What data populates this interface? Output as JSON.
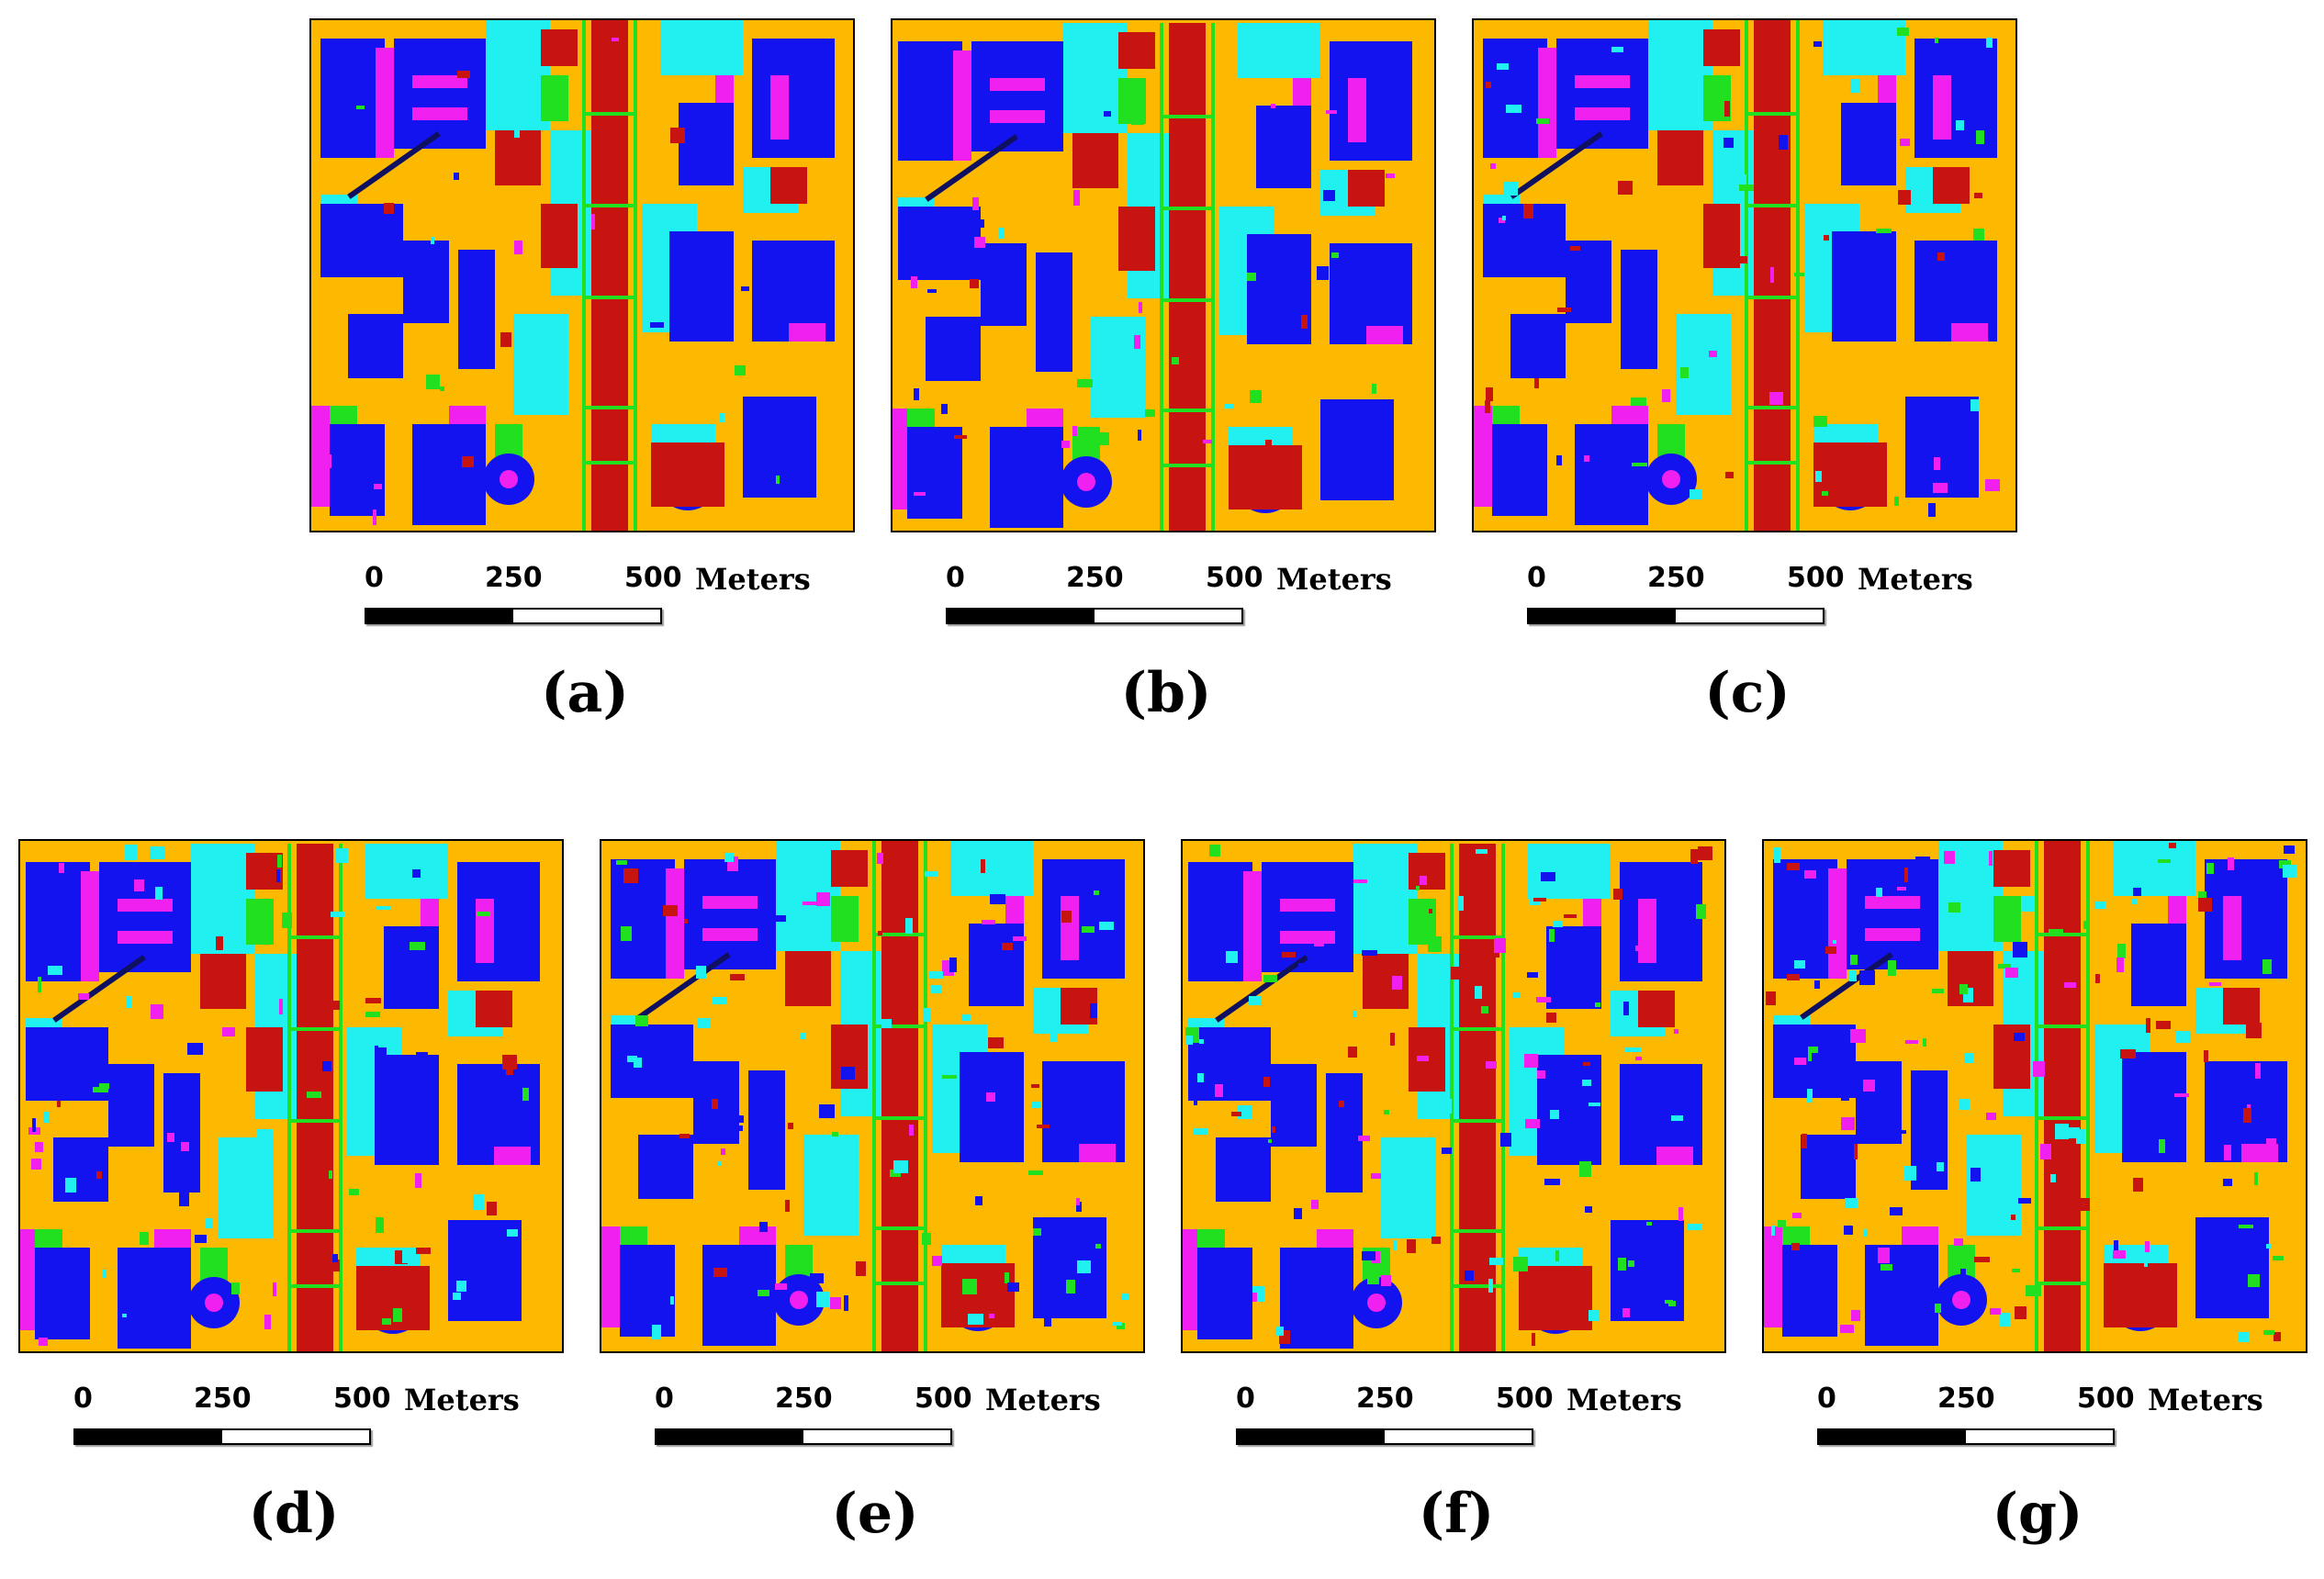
{
  "figure": {
    "legend_colors": {
      "background": "#fdb900",
      "building": "#1313f0",
      "roof_accent": "#f020f0",
      "vegetation": "#20f0f0",
      "road": "#c81410",
      "grass": "#20e020",
      "dark": "#101060"
    },
    "scale_bar": {
      "tick_0": "0",
      "tick_250": "250",
      "tick_500": "500",
      "unit": "Meters"
    },
    "panels": [
      {
        "id": "a",
        "label": "(a)"
      },
      {
        "id": "b",
        "label": "(b)"
      },
      {
        "id": "c",
        "label": "(c)"
      },
      {
        "id": "d",
        "label": "(d)"
      },
      {
        "id": "e",
        "label": "(e)"
      },
      {
        "id": "f",
        "label": "(f)"
      },
      {
        "id": "g",
        "label": "(g)"
      }
    ]
  }
}
